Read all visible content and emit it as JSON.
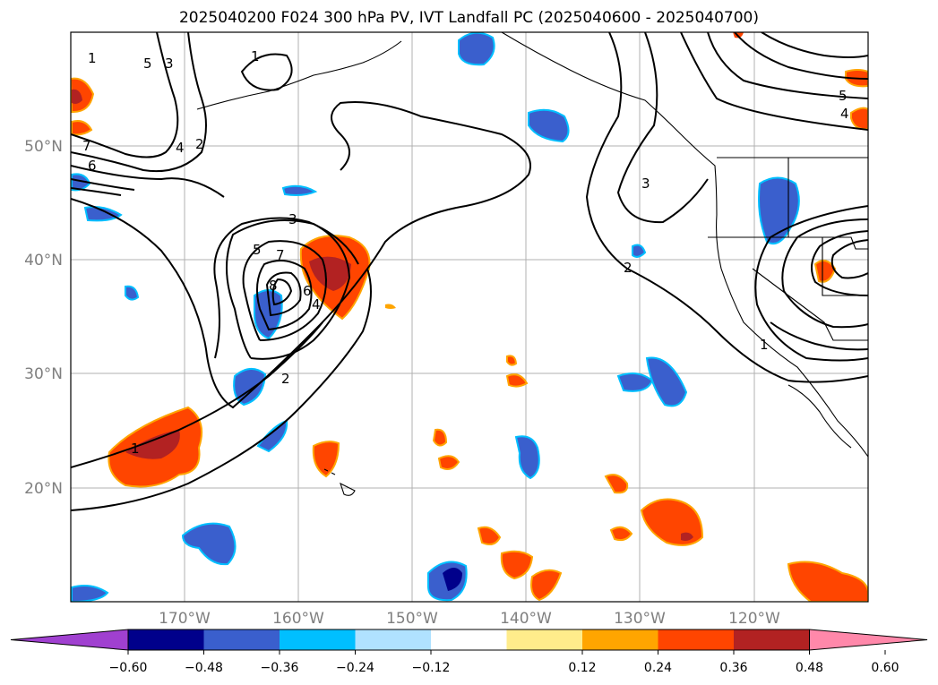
{
  "title": "2025040200 F024 300 hPa PV, IVT Landfall PC (2025040600 - 2025040700)",
  "lat_labels": [
    "50°N",
    "40°N",
    "30°N",
    "20°N"
  ],
  "lon_labels": [
    "170°W",
    "160°W",
    "150°W",
    "140°W",
    "130°W",
    "120°W"
  ],
  "colorbar": {
    "tick_labels": [
      "−0.60",
      "−0.48",
      "−0.36",
      "−0.24",
      "−0.12",
      "0.12",
      "0.24",
      "0.36",
      "0.48",
      "0.60"
    ],
    "colors": [
      "#a040d0",
      "#00008b",
      "#3a5fcd",
      "#00bfff",
      "#b0e2ff",
      "#ffffff",
      "#ffec8b",
      "#ffa500",
      "#ff4500",
      "#b22222",
      "#ff88aa"
    ]
  },
  "contour_labels": [
    "1",
    "2",
    "3",
    "4",
    "5",
    "6",
    "7",
    "8",
    "1",
    "2",
    "3",
    "4",
    "5",
    "6",
    "7",
    "1",
    "2",
    "3",
    "4",
    "5",
    "1"
  ],
  "colors": {
    "axis_label": "#7f7f7f",
    "grid": "#b0b0b0",
    "contour": "#000000"
  }
}
